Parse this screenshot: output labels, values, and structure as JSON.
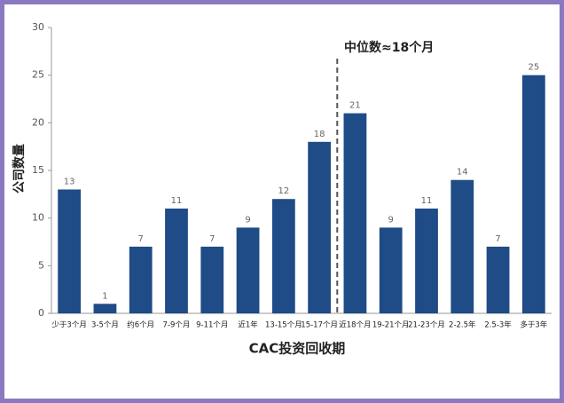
{
  "chart_data": {
    "type": "bar",
    "annotation": "中位数≈18个月",
    "x_label": "CAC投资回收期",
    "y_label": "公司数量",
    "categories": [
      "少于3个月",
      "3-5个月",
      "约6个月",
      "7-9个月",
      "9-11个月",
      "近1年",
      "13-15个月",
      "15-17个月",
      "近18个月",
      "19-21个月",
      "21-23个月",
      "2-2.5年",
      "2.5-3年",
      "多于3年"
    ],
    "values": [
      13,
      1,
      7,
      11,
      7,
      9,
      12,
      18,
      21,
      9,
      11,
      14,
      7,
      25
    ],
    "color": "#1f4b87",
    "ylim": [
      0,
      30
    ],
    "yticks": [
      0,
      5,
      10,
      15,
      20,
      25,
      30
    ],
    "grid": false
  }
}
